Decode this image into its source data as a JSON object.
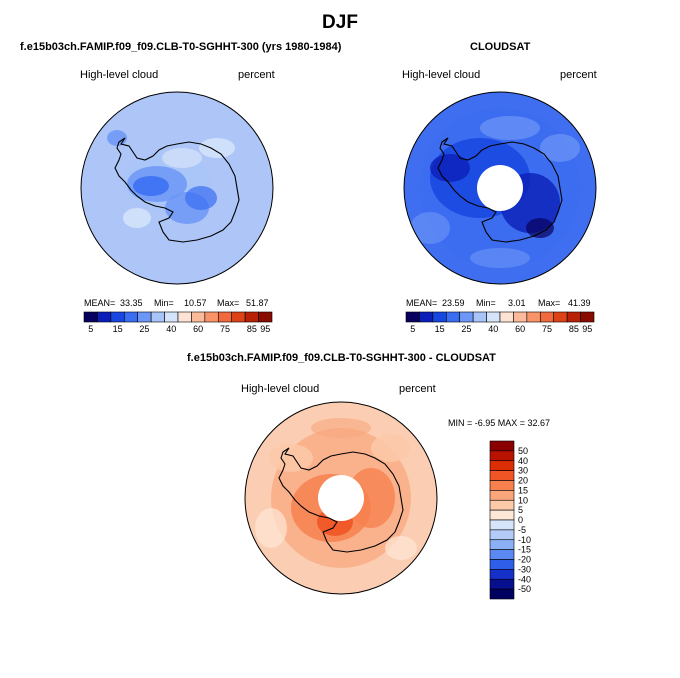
{
  "figure": {
    "season": "DJF"
  },
  "panels": [
    {
      "title": "f.e15b03ch.FAMIP.f09_f09.CLB-T0-SGHHT-300 (yrs 1980-1984)",
      "variable": "High-level cloud",
      "units": "percent",
      "mean_label": "MEAN=",
      "mean": "33.35",
      "min_label": "Min=",
      "min": "10.57",
      "max_label": "Max=",
      "max": "51.87",
      "polar_hole": false
    },
    {
      "title": "CLOUDSAT",
      "variable": "High-level cloud",
      "units": "percent",
      "mean_label": "MEAN=",
      "mean": "23.59",
      "min_label": "Min=",
      "min": "3.01",
      "max_label": "Max=",
      "max": "41.39",
      "polar_hole": true
    },
    {
      "title": "f.e15b03ch.FAMIP.f09_f09.CLB-T0-SGHHT-300 - CLOUDSAT",
      "variable": "High-level cloud",
      "units": "percent",
      "minmax_text": "MIN =   -6.95 MAX =   32.67",
      "polar_hole": true
    }
  ],
  "chart_data": [
    {
      "type": "heatmap",
      "projection": "south-polar-stereographic",
      "title": "f.e15b03ch.FAMIP.f09_f09.CLB-T0-SGHHT-300 (yrs 1980-1984)",
      "field": "High-level cloud (percent)",
      "mean": 33.35,
      "min": 10.57,
      "max": 51.87,
      "colorbar_levels": [
        5,
        15,
        25,
        40,
        60,
        75,
        85,
        95
      ],
      "colorbar_labels": [
        "5",
        "15",
        "25",
        "40",
        "60",
        "75",
        "85",
        "95"
      ]
    },
    {
      "type": "heatmap",
      "projection": "south-polar-stereographic",
      "title": "CLOUDSAT",
      "field": "High-level cloud (percent)",
      "mean": 23.59,
      "min": 3.01,
      "max": 41.39,
      "colorbar_levels": [
        5,
        15,
        25,
        40,
        60,
        75,
        85,
        95
      ],
      "colorbar_labels": [
        "5",
        "15",
        "25",
        "40",
        "60",
        "75",
        "85",
        "95"
      ]
    },
    {
      "type": "heatmap",
      "projection": "south-polar-stereographic",
      "title": "f.e15b03ch.FAMIP.f09_f09.CLB-T0-SGHHT-300 - CLOUDSAT",
      "field": "High-level cloud difference (percent)",
      "min": -6.95,
      "max": 32.67,
      "colorbar_levels": [
        50,
        40,
        30,
        20,
        15,
        10,
        5,
        0,
        -5,
        -10,
        -15,
        -20,
        -30,
        -40,
        -50
      ],
      "colorbar_labels": [
        "50",
        "40",
        "30",
        "20",
        "15",
        "10",
        "5",
        "0",
        "-5",
        "-10",
        "-15",
        "-20",
        "-30",
        "-40",
        "-50"
      ]
    }
  ],
  "colors": {
    "abs_scale": [
      "#08005e",
      "#0b1fb8",
      "#1846e0",
      "#3a6df2",
      "#6d97f6",
      "#a9c4f8",
      "#d5e4fa",
      "#fde3d3",
      "#fbbb9a",
      "#f89468",
      "#f06a3d",
      "#de4317",
      "#b92106",
      "#8a0c00"
    ],
    "diff_scale": [
      "#8a0000",
      "#b91200",
      "#dc2e05",
      "#f05525",
      "#f6814f",
      "#f9a67d",
      "#fcc9a9",
      "#fde7d6",
      "#d7e5fa",
      "#b2cbf7",
      "#8bb0f4",
      "#5a89f1",
      "#2f5ee8",
      "#1531c9",
      "#060f8e",
      "#000060"
    ],
    "fill_panel1": "#adc5f7",
    "fill_panel2": "#3f6ff0",
    "fill_panel3": "#fbcdb2"
  }
}
